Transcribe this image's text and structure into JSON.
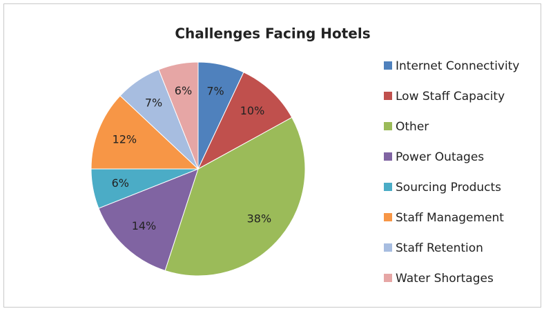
{
  "chart_data": {
    "type": "pie",
    "title": "Challenges Facing Hotels",
    "categories": [
      "Internet Connectivity",
      "Low Staff Capacity",
      "Other",
      "Power Outages",
      "Sourcing Products",
      "Staff Management",
      "Staff Retention",
      "Water Shortages"
    ],
    "values": [
      7,
      10,
      38,
      14,
      6,
      12,
      7,
      6
    ],
    "value_labels": [
      "7%",
      "10%",
      "38%",
      "14%",
      "6%",
      "12%",
      "7%",
      "6%"
    ],
    "colors": [
      "#4f81bd",
      "#c0504d",
      "#9bbb59",
      "#8064a2",
      "#4bacc6",
      "#f79646",
      "#a7bde0",
      "#e6a6a5"
    ],
    "legend": "right"
  }
}
